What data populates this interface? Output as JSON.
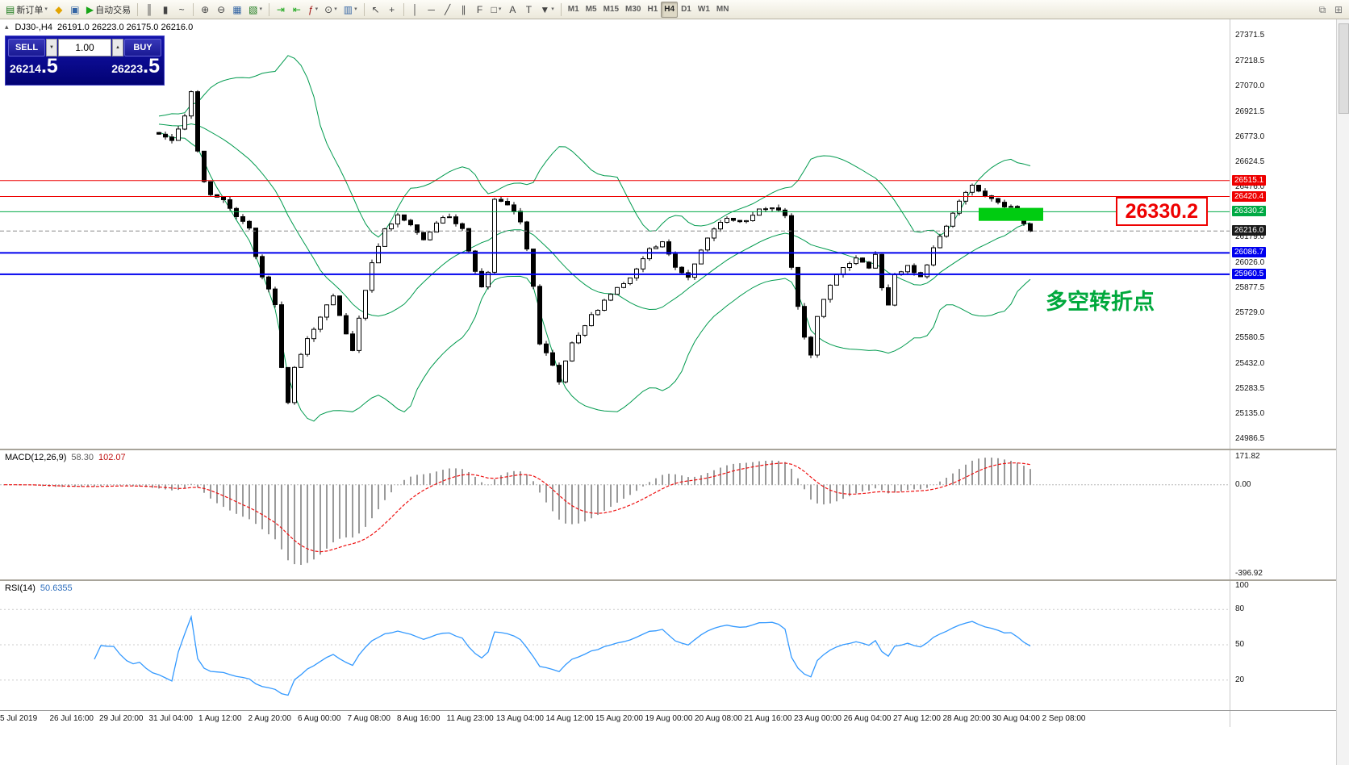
{
  "toolbar": {
    "caret_glyph": "▾",
    "groups": [
      {
        "name": "trading",
        "buttons": [
          {
            "name": "new-order-button",
            "glyph": "▤",
            "glyph_color": "#1a7a1a",
            "label": "新订单",
            "caret": true
          },
          {
            "name": "mql5-community-button",
            "glyph": "◆",
            "glyph_color": "#e2a400"
          },
          {
            "name": "profiles-button",
            "glyph": "▣",
            "glyph_color": "#3465a4"
          },
          {
            "name": "autotrading-button",
            "glyph": "▶",
            "glyph_color": "#17a517",
            "label": "自动交易"
          }
        ]
      },
      {
        "name": "chart-types",
        "buttons": [
          {
            "name": "bar-chart-button",
            "glyph": "║"
          },
          {
            "name": "candlestick-chart-button",
            "glyph": "▮"
          },
          {
            "name": "line-chart-button",
            "glyph": "~"
          }
        ]
      },
      {
        "name": "zoom",
        "buttons": [
          {
            "name": "zoom-in-button",
            "glyph": "⊕"
          },
          {
            "name": "zoom-out-button",
            "glyph": "⊖"
          },
          {
            "name": "tile-windows-button",
            "glyph": "▦",
            "glyph_color": "#3465a4"
          },
          {
            "name": "new-chart-button",
            "glyph": "▧",
            "glyph_color": "#1a7a1a",
            "caret": true
          }
        ]
      },
      {
        "name": "chart-tools",
        "buttons": [
          {
            "name": "auto-scroll-button",
            "glyph": "⇥",
            "glyph_color": "#17a517"
          },
          {
            "name": "chart-shift-button",
            "glyph": "⇤",
            "glyph_color": "#17a517"
          },
          {
            "name": "indicators-button",
            "glyph": "ƒ",
            "glyph_color": "#a01010",
            "caret": true
          },
          {
            "name": "periods-button",
            "glyph": "⊙",
            "caret": true
          },
          {
            "name": "templates-button",
            "glyph": "▥",
            "glyph_color": "#3465a4",
            "caret": true
          }
        ]
      },
      {
        "name": "cursor-tools",
        "buttons": [
          {
            "name": "cursor-button",
            "glyph": "↖"
          },
          {
            "name": "crosshair-button",
            "glyph": "+"
          }
        ]
      },
      {
        "name": "draw-tools",
        "buttons": [
          {
            "name": "vertical-line-button",
            "glyph": "│"
          },
          {
            "name": "horizontal-line-button",
            "glyph": "─"
          },
          {
            "name": "trendline-button",
            "glyph": "╱"
          },
          {
            "name": "equidistant-channel-button",
            "glyph": "∥"
          },
          {
            "name": "fibonacci-button",
            "glyph": "F"
          },
          {
            "name": "shapes-button",
            "glyph": "□",
            "caret": true
          },
          {
            "name": "text-button",
            "glyph": "A"
          },
          {
            "name": "text-label-button",
            "glyph": "T"
          },
          {
            "name": "arrows-button",
            "glyph": "▼",
            "caret": true
          }
        ]
      },
      {
        "name": "timeframes",
        "buttons": [
          {
            "name": "timeframe-m1-button",
            "label": "M1"
          },
          {
            "name": "timeframe-m5-button",
            "label": "M5"
          },
          {
            "name": "timeframe-m15-button",
            "label": "M15"
          },
          {
            "name": "timeframe-m30-button",
            "label": "M30"
          },
          {
            "name": "timeframe-h1-button",
            "label": "H1"
          },
          {
            "name": "timeframe-h4-button",
            "label": "H4",
            "active": true
          },
          {
            "name": "timeframe-d1-button",
            "label": "D1"
          },
          {
            "name": "timeframe-w1-button",
            "label": "W1"
          },
          {
            "name": "timeframe-mn-button",
            "label": "MN"
          }
        ]
      }
    ],
    "right_buttons": [
      {
        "name": "window-restore-button",
        "glyph": "⧉"
      },
      {
        "name": "window-new-button",
        "glyph": "⊞"
      }
    ]
  },
  "chart_header": {
    "symbol_period": "DJ30-,H4",
    "ohlc": "26191.0 26223.0 26175.0 26216.0"
  },
  "trade_panel": {
    "toggle_glyph": "▴",
    "sell_label": "SELL",
    "buy_label": "BUY",
    "volume": "1.00",
    "volume_down_glyph": "▼",
    "volume_up_glyph": "▲",
    "bid": "26214",
    "bid_fraction": ".5",
    "ask": "26223",
    "ask_fraction": ".5"
  },
  "main_chart": {
    "axis_labels": [
      "27371.5",
      "27218.5",
      "27070.0",
      "26921.5",
      "26773.0",
      "26624.5",
      "26476.0",
      "26327.5",
      "26179.0",
      "26026.0",
      "25877.5",
      "25729.0",
      "25580.5",
      "25432.0",
      "25283.5",
      "25135.0",
      "24986.5"
    ],
    "lines": [
      {
        "name": "resistance-line-1",
        "price": 26515.1,
        "label": "26515.1",
        "color": "#ee0000",
        "width": 1,
        "style": "solid"
      },
      {
        "name": "resistance-line-2",
        "price": 26420.4,
        "label": "26420.4",
        "color": "#ee0000",
        "width": 1,
        "style": "solid"
      },
      {
        "name": "pivot-line",
        "price": 26330.2,
        "label": "26330.2",
        "color": "#00aa44",
        "width": 1,
        "style": "solid"
      },
      {
        "name": "current-price-line",
        "price": 26216.0,
        "label": "26216.0",
        "color": "#8a8a8a",
        "width": 1,
        "style": "dashed",
        "badge": "#1b1b1b"
      },
      {
        "name": "support-line-1",
        "price": 26086.7,
        "label": "26086.7",
        "color": "#0000ee",
        "width": 2,
        "style": "solid"
      },
      {
        "name": "support-line-2",
        "price": 25960.5,
        "label": "25960.5",
        "color": "#0000ee",
        "width": 2,
        "style": "solid"
      }
    ],
    "big_price_label": "26330.2",
    "annotation": "多空转折点",
    "highlight_box": {
      "from_bar": 127,
      "to_bar": 137,
      "price_top": 26353,
      "price_bottom": 26276,
      "color": "#00cc11"
    }
  },
  "macd_panel": {
    "title": "MACD(12,26,9)",
    "value": "58.30",
    "signal_value": "102.07",
    "scale_top": "171.82",
    "scale_zero": "0.00",
    "scale_bottom": "-396.92"
  },
  "rsi_panel": {
    "title": "RSI(14)",
    "value": "50.6355",
    "levels": [
      "100",
      "80",
      "50",
      "20"
    ]
  },
  "time_axis": [
    "5 Jul 2019",
    "26 Jul 16:00",
    "29 Jul 20:00",
    "31 Jul 04:00",
    "1 Aug 12:00",
    "2 Aug 20:00",
    "6 Aug 00:00",
    "7 Aug 08:00",
    "8 Aug 16:00",
    "11 Aug 23:00",
    "13 Aug 04:00",
    "14 Aug 12:00",
    "15 Aug 20:00",
    "19 Aug 00:00",
    "20 Aug 08:00",
    "21 Aug 16:00",
    "23 Aug 00:00",
    "26 Aug 04:00",
    "27 Aug 12:00",
    "28 Aug 20:00",
    "30 Aug 04:00",
    "2 Sep 08:00"
  ],
  "chart_data": {
    "type": "candlestick",
    "symbol": "DJ30-",
    "period": "H4",
    "visible_price_range": [
      24929,
      27468
    ],
    "lead_in_bars": 24,
    "bar_count": 136,
    "anchors": [
      [
        -24,
        26900
      ],
      [
        -16,
        26840
      ],
      [
        -8,
        26880
      ],
      [
        0,
        26800
      ],
      [
        2,
        26760
      ],
      [
        4,
        26900
      ],
      [
        5,
        27040
      ],
      [
        6,
        26700
      ],
      [
        7,
        26520
      ],
      [
        8,
        26440
      ],
      [
        10,
        26400
      ],
      [
        12,
        26310
      ],
      [
        14,
        26230
      ],
      [
        15,
        26060
      ],
      [
        16,
        25950
      ],
      [
        18,
        25780
      ],
      [
        19,
        25420
      ],
      [
        20,
        25190
      ],
      [
        21,
        25400
      ],
      [
        23,
        25570
      ],
      [
        25,
        25710
      ],
      [
        27,
        25830
      ],
      [
        29,
        25610
      ],
      [
        30,
        25520
      ],
      [
        31,
        25700
      ],
      [
        33,
        26040
      ],
      [
        35,
        26220
      ],
      [
        37,
        26300
      ],
      [
        39,
        26260
      ],
      [
        41,
        26160
      ],
      [
        43,
        26270
      ],
      [
        45,
        26300
      ],
      [
        47,
        26230
      ],
      [
        49,
        25980
      ],
      [
        50,
        25880
      ],
      [
        51,
        25960
      ],
      [
        52,
        26410
      ],
      [
        54,
        26370
      ],
      [
        56,
        26280
      ],
      [
        57,
        26120
      ],
      [
        58,
        25880
      ],
      [
        59,
        25560
      ],
      [
        61,
        25430
      ],
      [
        62,
        25320
      ],
      [
        64,
        25560
      ],
      [
        66,
        25660
      ],
      [
        68,
        25760
      ],
      [
        70,
        25850
      ],
      [
        72,
        25900
      ],
      [
        74,
        26000
      ],
      [
        76,
        26100
      ],
      [
        78,
        26140
      ],
      [
        80,
        26010
      ],
      [
        82,
        25950
      ],
      [
        84,
        26110
      ],
      [
        86,
        26240
      ],
      [
        88,
        26300
      ],
      [
        90,
        26260
      ],
      [
        92,
        26310
      ],
      [
        94,
        26360
      ],
      [
        96,
        26330
      ],
      [
        97,
        26300
      ],
      [
        98,
        26010
      ],
      [
        99,
        25760
      ],
      [
        100,
        25600
      ],
      [
        101,
        25470
      ],
      [
        102,
        25700
      ],
      [
        104,
        25900
      ],
      [
        106,
        25990
      ],
      [
        108,
        26050
      ],
      [
        110,
        26000
      ],
      [
        111,
        26070
      ],
      [
        112,
        25880
      ],
      [
        113,
        25790
      ],
      [
        114,
        25950
      ],
      [
        116,
        26010
      ],
      [
        118,
        25940
      ],
      [
        120,
        26110
      ],
      [
        122,
        26250
      ],
      [
        124,
        26380
      ],
      [
        126,
        26490
      ],
      [
        128,
        26420
      ],
      [
        130,
        26380
      ],
      [
        132,
        26350
      ],
      [
        134,
        26270
      ],
      [
        135,
        26216
      ]
    ],
    "last_close": 26216.0,
    "bollinger": {
      "period": 20,
      "deviation": 2
    },
    "macd": {
      "fast": 12,
      "slow": 26,
      "signal": 9
    },
    "rsi": {
      "period": 14
    },
    "key_levels": [
      26515.1,
      26420.4,
      26330.2,
      26216.0,
      26086.7,
      25960.5
    ]
  },
  "colors": {
    "bollinger": "#009a4e",
    "candle_up_fill": "#ffffff",
    "candle_down_fill": "#000000",
    "candle_border": "#000000",
    "macd_histogram": "#9a9a9a",
    "macd_signal": "#ee1111",
    "rsi_line": "#3399ff",
    "annotation_green": "#00a83c",
    "big_label_red": "#ee0000",
    "trade_panel_bg": "#0505a0"
  }
}
